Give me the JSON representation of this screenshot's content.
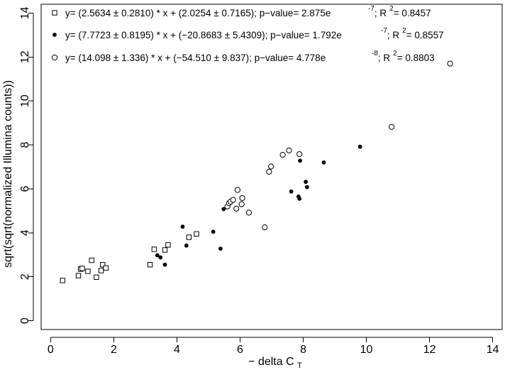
{
  "chart_data": {
    "type": "scatter",
    "xlabel": "− delta C",
    "xlabel_subscript": "T",
    "ylabel": "sqrt(sqrt(normalized Illumina counts))",
    "xlim": [
      -0.3,
      14.3
    ],
    "ylim": [
      -0.4,
      14.4
    ],
    "xticks": [
      0,
      2,
      4,
      6,
      8,
      10,
      12,
      14
    ],
    "yticks": [
      0,
      2,
      4,
      6,
      8,
      10,
      12,
      14
    ],
    "grid": false,
    "legend_position": "top-left",
    "series": [
      {
        "name": "y= (2.5634 ± 0.2810) * x + (2.0254 ± 0.7165); p−value= 2.875e",
        "exponent": "-7",
        "r2_label": "; R",
        "r2_sup": "2",
        "r2_value": "= 0.8457",
        "marker": "open-square",
        "points": [
          [
            0.38,
            1.83
          ],
          [
            0.88,
            2.05
          ],
          [
            0.95,
            2.35
          ],
          [
            1.0,
            2.38
          ],
          [
            1.18,
            2.25
          ],
          [
            1.3,
            2.75
          ],
          [
            1.45,
            1.98
          ],
          [
            1.6,
            2.28
          ],
          [
            1.65,
            2.55
          ],
          [
            1.75,
            2.4
          ],
          [
            3.15,
            2.55
          ],
          [
            3.28,
            3.25
          ],
          [
            3.62,
            3.22
          ],
          [
            3.72,
            3.45
          ],
          [
            4.38,
            3.8
          ],
          [
            4.62,
            3.95
          ]
        ]
      },
      {
        "name": "y= (7.7723 ± 0.8195) * x + (−20.8683 ± 5.4309); p−value= 1.792e",
        "exponent": "-7",
        "r2_label": "; R",
        "r2_sup": "2",
        "r2_value": "= 0.8557",
        "marker": "filled-circle",
        "points": [
          [
            3.38,
            2.98
          ],
          [
            3.48,
            2.88
          ],
          [
            3.62,
            2.55
          ],
          [
            4.18,
            4.28
          ],
          [
            4.3,
            3.42
          ],
          [
            5.15,
            4.05
          ],
          [
            5.38,
            3.28
          ],
          [
            5.48,
            5.08
          ],
          [
            7.62,
            5.88
          ],
          [
            7.85,
            5.65
          ],
          [
            7.88,
            5.55
          ],
          [
            7.9,
            7.28
          ],
          [
            8.08,
            6.32
          ],
          [
            8.12,
            6.08
          ],
          [
            8.65,
            7.2
          ],
          [
            9.8,
            7.92
          ]
        ]
      },
      {
        "name": "y= (14.098 ± 1.336) * x + (−54.510 ± 9.837); p−value= 4.778e",
        "exponent": "-8",
        "r2_label": "; R",
        "r2_sup": "2",
        "r2_value": "= 0.8803",
        "marker": "open-circle",
        "points": [
          [
            5.6,
            5.2
          ],
          [
            5.65,
            5.35
          ],
          [
            5.7,
            5.42
          ],
          [
            5.78,
            5.5
          ],
          [
            5.88,
            5.1
          ],
          [
            5.92,
            5.95
          ],
          [
            6.05,
            5.3
          ],
          [
            6.07,
            5.58
          ],
          [
            6.28,
            4.92
          ],
          [
            6.78,
            4.25
          ],
          [
            6.92,
            6.78
          ],
          [
            6.98,
            7.02
          ],
          [
            7.35,
            7.55
          ],
          [
            7.55,
            7.75
          ],
          [
            7.88,
            7.58
          ],
          [
            10.8,
            8.82
          ],
          [
            12.65,
            11.7
          ]
        ]
      }
    ]
  }
}
